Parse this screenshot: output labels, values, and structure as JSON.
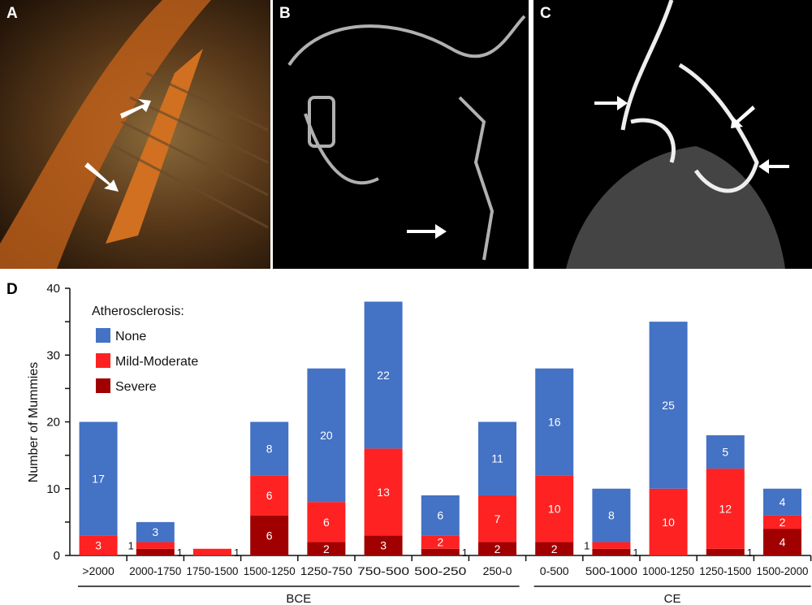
{
  "panels": {
    "a": {
      "label": "A"
    },
    "b": {
      "label": "B"
    },
    "c": {
      "label": "C"
    },
    "d": {
      "label": "D"
    }
  },
  "colors": {
    "none": "#4472C4",
    "mild": "#FF2222",
    "severe": "#A00000"
  },
  "chart_data": {
    "type": "bar",
    "stacked": true,
    "title": "",
    "xlabel": "",
    "ylabel": "Number of Mummies",
    "ylim": [
      0,
      40
    ],
    "yticks": [
      "0",
      "10",
      "20",
      "30",
      "40"
    ],
    "categories": [
      ">2000",
      "2000-1750",
      "1750-1500",
      "1500-1250",
      "1250-750",
      "750-500",
      "500-250",
      "250-0",
      "0-500",
      "500-1000",
      "1000-1250",
      "1250-1500",
      "1500-2000"
    ],
    "groups": [
      {
        "label": "BCE",
        "from": 0,
        "to": 7
      },
      {
        "label": "CE",
        "from": 8,
        "to": 12
      }
    ],
    "legend": {
      "title": "Atherosclerosis:",
      "placement": "top-left"
    },
    "series": [
      {
        "name": "Severe",
        "values": [
          0,
          1,
          0,
          6,
          2,
          3,
          1,
          2,
          2,
          1,
          0,
          1,
          4
        ]
      },
      {
        "name": "Mild-Moderate",
        "values": [
          3,
          1,
          1,
          6,
          6,
          13,
          2,
          7,
          10,
          1,
          10,
          12,
          2
        ]
      },
      {
        "name": "None",
        "values": [
          17,
          3,
          0,
          8,
          20,
          22,
          6,
          11,
          16,
          8,
          25,
          5,
          4
        ]
      }
    ]
  }
}
